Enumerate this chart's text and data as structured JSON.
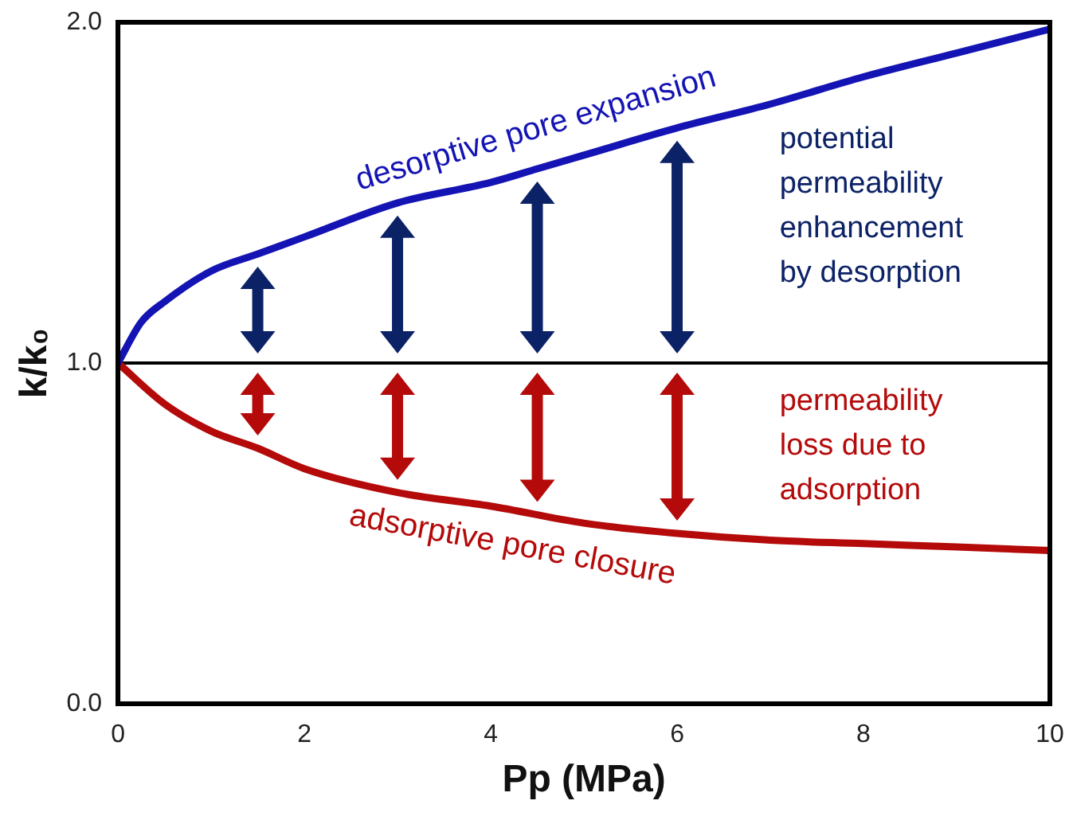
{
  "chart_data": {
    "type": "line",
    "xlabel": "Pp (MPa)",
    "ylabel": "k/k₀",
    "xlim": [
      0,
      10
    ],
    "xticks": [
      0,
      2,
      4,
      6,
      8,
      10
    ],
    "ylim": [
      0,
      2
    ],
    "yticks": [
      {
        "value": 0,
        "label": "0.0"
      },
      {
        "value": 1,
        "label": "1.0"
      },
      {
        "value": 2,
        "label": "2.0"
      }
    ],
    "series": [
      {
        "name": "desorptive pore expansion",
        "color": "#1414b4",
        "x": [
          0,
          0.25,
          0.5,
          1,
          1.5,
          2,
          3,
          4,
          4.5,
          5,
          6,
          7,
          8,
          9,
          10
        ],
        "values": [
          1.0,
          1.12,
          1.18,
          1.27,
          1.32,
          1.37,
          1.47,
          1.53,
          1.57,
          1.61,
          1.69,
          1.76,
          1.84,
          1.91,
          1.98
        ]
      },
      {
        "name": "adsorptive pore closure",
        "color": "#b40a0a",
        "x": [
          0,
          0.5,
          1,
          1.5,
          2,
          3,
          4,
          5,
          6,
          7,
          8,
          9,
          10
        ],
        "values": [
          1.0,
          0.88,
          0.8,
          0.75,
          0.69,
          0.62,
          0.58,
          0.53,
          0.5,
          0.48,
          0.47,
          0.46,
          0.45
        ]
      }
    ],
    "ref_lines": [
      {
        "axis": "y",
        "value": 1.0,
        "color": "#000000"
      }
    ],
    "annotations": [
      "potential\npermeability\nenhancement\nby desorption",
      "permeability\nloss due to\nadsorption"
    ],
    "grid": false,
    "legend": false,
    "marker": "none",
    "line_style": "solid"
  }
}
